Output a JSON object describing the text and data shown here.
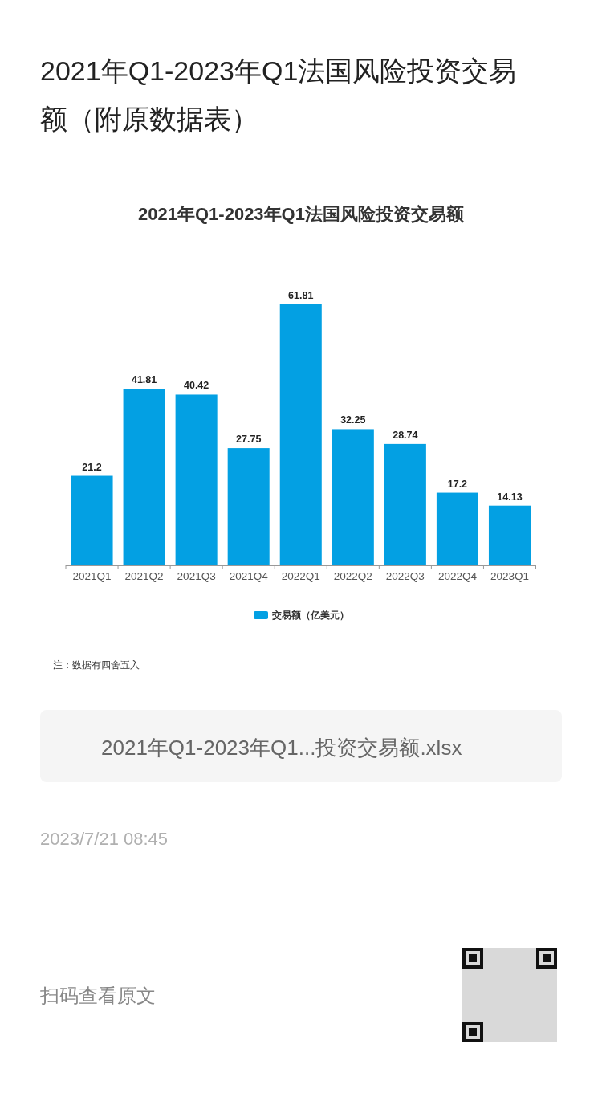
{
  "chart_data": {
    "type": "bar",
    "title": "2021年Q1-2023年Q1法国风险投资交易额（附原数据表）",
    "subtitle": "2021年Q1-2023年Q1法国风险投资交易额",
    "categories": [
      "2021Q1",
      "2021Q2",
      "2021Q3",
      "2021Q4",
      "2022Q1",
      "2022Q2",
      "2022Q3",
      "2022Q4",
      "2023Q1"
    ],
    "series": [
      {
        "name": "交易额（亿美元）",
        "color": "#03a0e3",
        "values": [
          21.2,
          41.81,
          40.42,
          27.75,
          61.81,
          32.25,
          28.74,
          17.2,
          14.13
        ]
      }
    ],
    "data_labels": true,
    "legend": "bottom",
    "annotations": [
      "注：数据有四舍五入",
      "2021年Q1-2023年Q1...投资交易额.xlsx",
      "2023/7/21 08:45",
      "扫码查看原文"
    ]
  }
}
